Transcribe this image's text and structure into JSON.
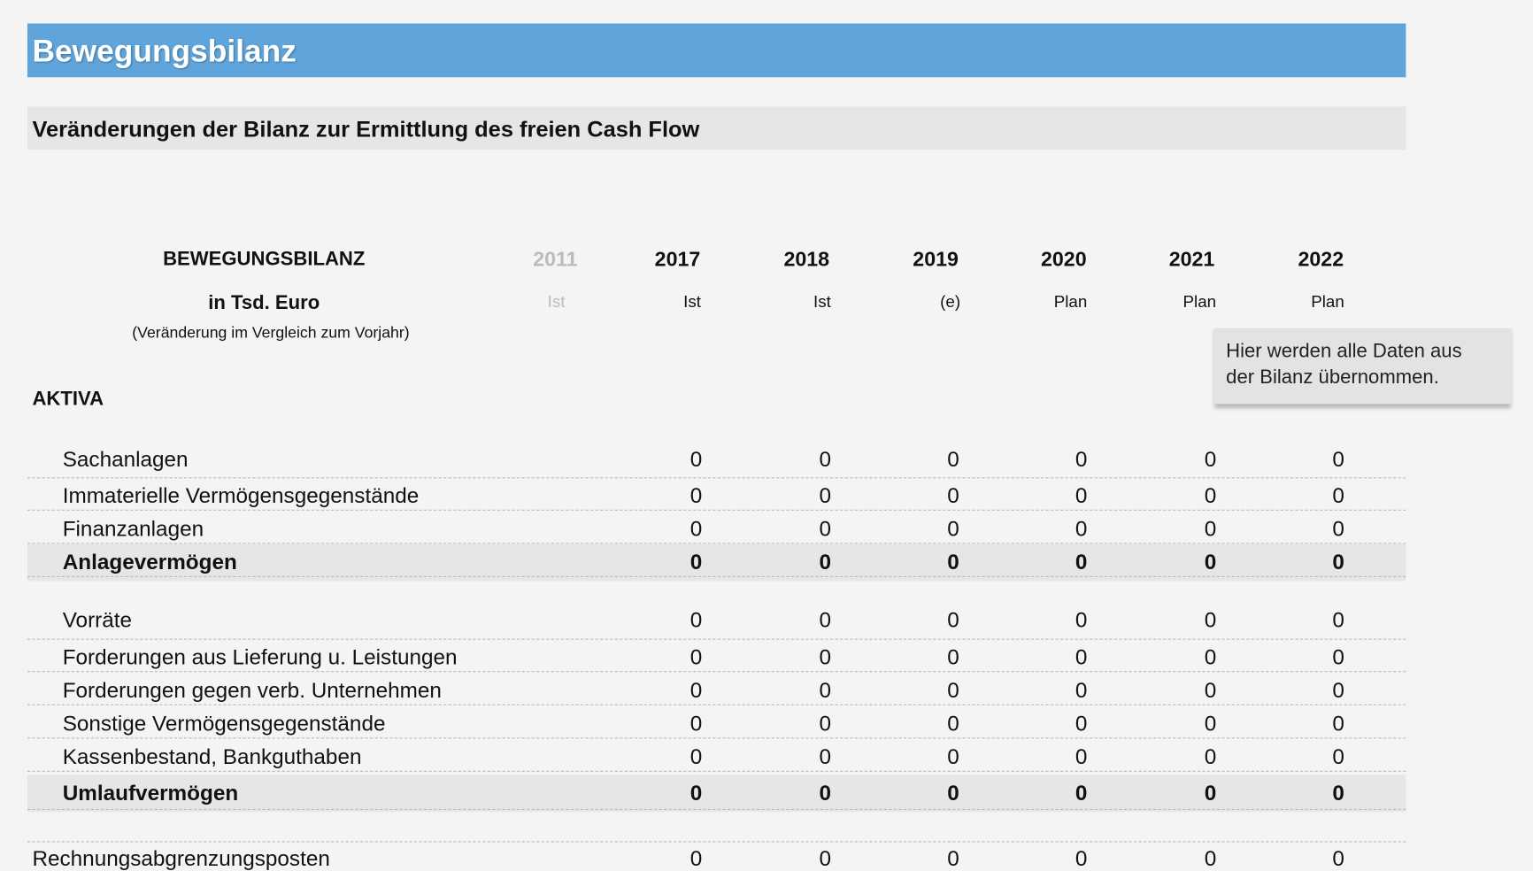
{
  "header": {
    "title": "Bewegungsbilanz",
    "subtitle": "Veränderungen der Bilanz zur Ermittlung des freien Cash Flow"
  },
  "table": {
    "heading": [
      "BEWEGUNGSBILANZ",
      "in Tsd. Euro",
      "(Veränderung im Vergleich zum Vorjahr)"
    ],
    "columns": [
      {
        "year": "2011",
        "sub": "Ist",
        "muted": true
      },
      {
        "year": "2017",
        "sub": "Ist"
      },
      {
        "year": "2018",
        "sub": "Ist"
      },
      {
        "year": "2019",
        "sub": "(e)"
      },
      {
        "year": "2020",
        "sub": "Plan"
      },
      {
        "year": "2021",
        "sub": "Plan"
      },
      {
        "year": "2022",
        "sub": "Plan"
      }
    ],
    "section": "AKTIVA",
    "rows": [
      {
        "label": "Sachanlagen",
        "values": [
          0,
          0,
          0,
          0,
          0,
          0
        ]
      },
      {
        "label": "Immaterielle Vermögensgegenstände",
        "values": [
          0,
          0,
          0,
          0,
          0,
          0
        ]
      },
      {
        "label": "Finanzanlagen",
        "values": [
          0,
          0,
          0,
          0,
          0,
          0
        ]
      },
      {
        "label": "Anlagevermögen",
        "values": [
          0,
          0,
          0,
          0,
          0,
          0
        ],
        "bold": true
      },
      {
        "label": "Vorräte",
        "values": [
          0,
          0,
          0,
          0,
          0,
          0
        ]
      },
      {
        "label": "Forderungen aus Lieferung u. Leistungen",
        "values": [
          0,
          0,
          0,
          0,
          0,
          0
        ]
      },
      {
        "label": "Forderungen gegen verb. Unternehmen",
        "values": [
          0,
          0,
          0,
          0,
          0,
          0
        ]
      },
      {
        "label": "Sonstige Vermögensgegenstände",
        "values": [
          0,
          0,
          0,
          0,
          0,
          0
        ]
      },
      {
        "label": "Kassenbestand, Bankguthaben",
        "values": [
          0,
          0,
          0,
          0,
          0,
          0
        ]
      },
      {
        "label": "Umlaufvermögen",
        "values": [
          0,
          0,
          0,
          0,
          0,
          0
        ],
        "bold": true
      },
      {
        "label": "Rechnungsabgrenzungsposten",
        "values": [
          0,
          0,
          0,
          0,
          0,
          0
        ],
        "outdent": true
      }
    ]
  },
  "note": [
    "Hier werden alle Daten aus",
    "der Bilanz übernommen."
  ]
}
